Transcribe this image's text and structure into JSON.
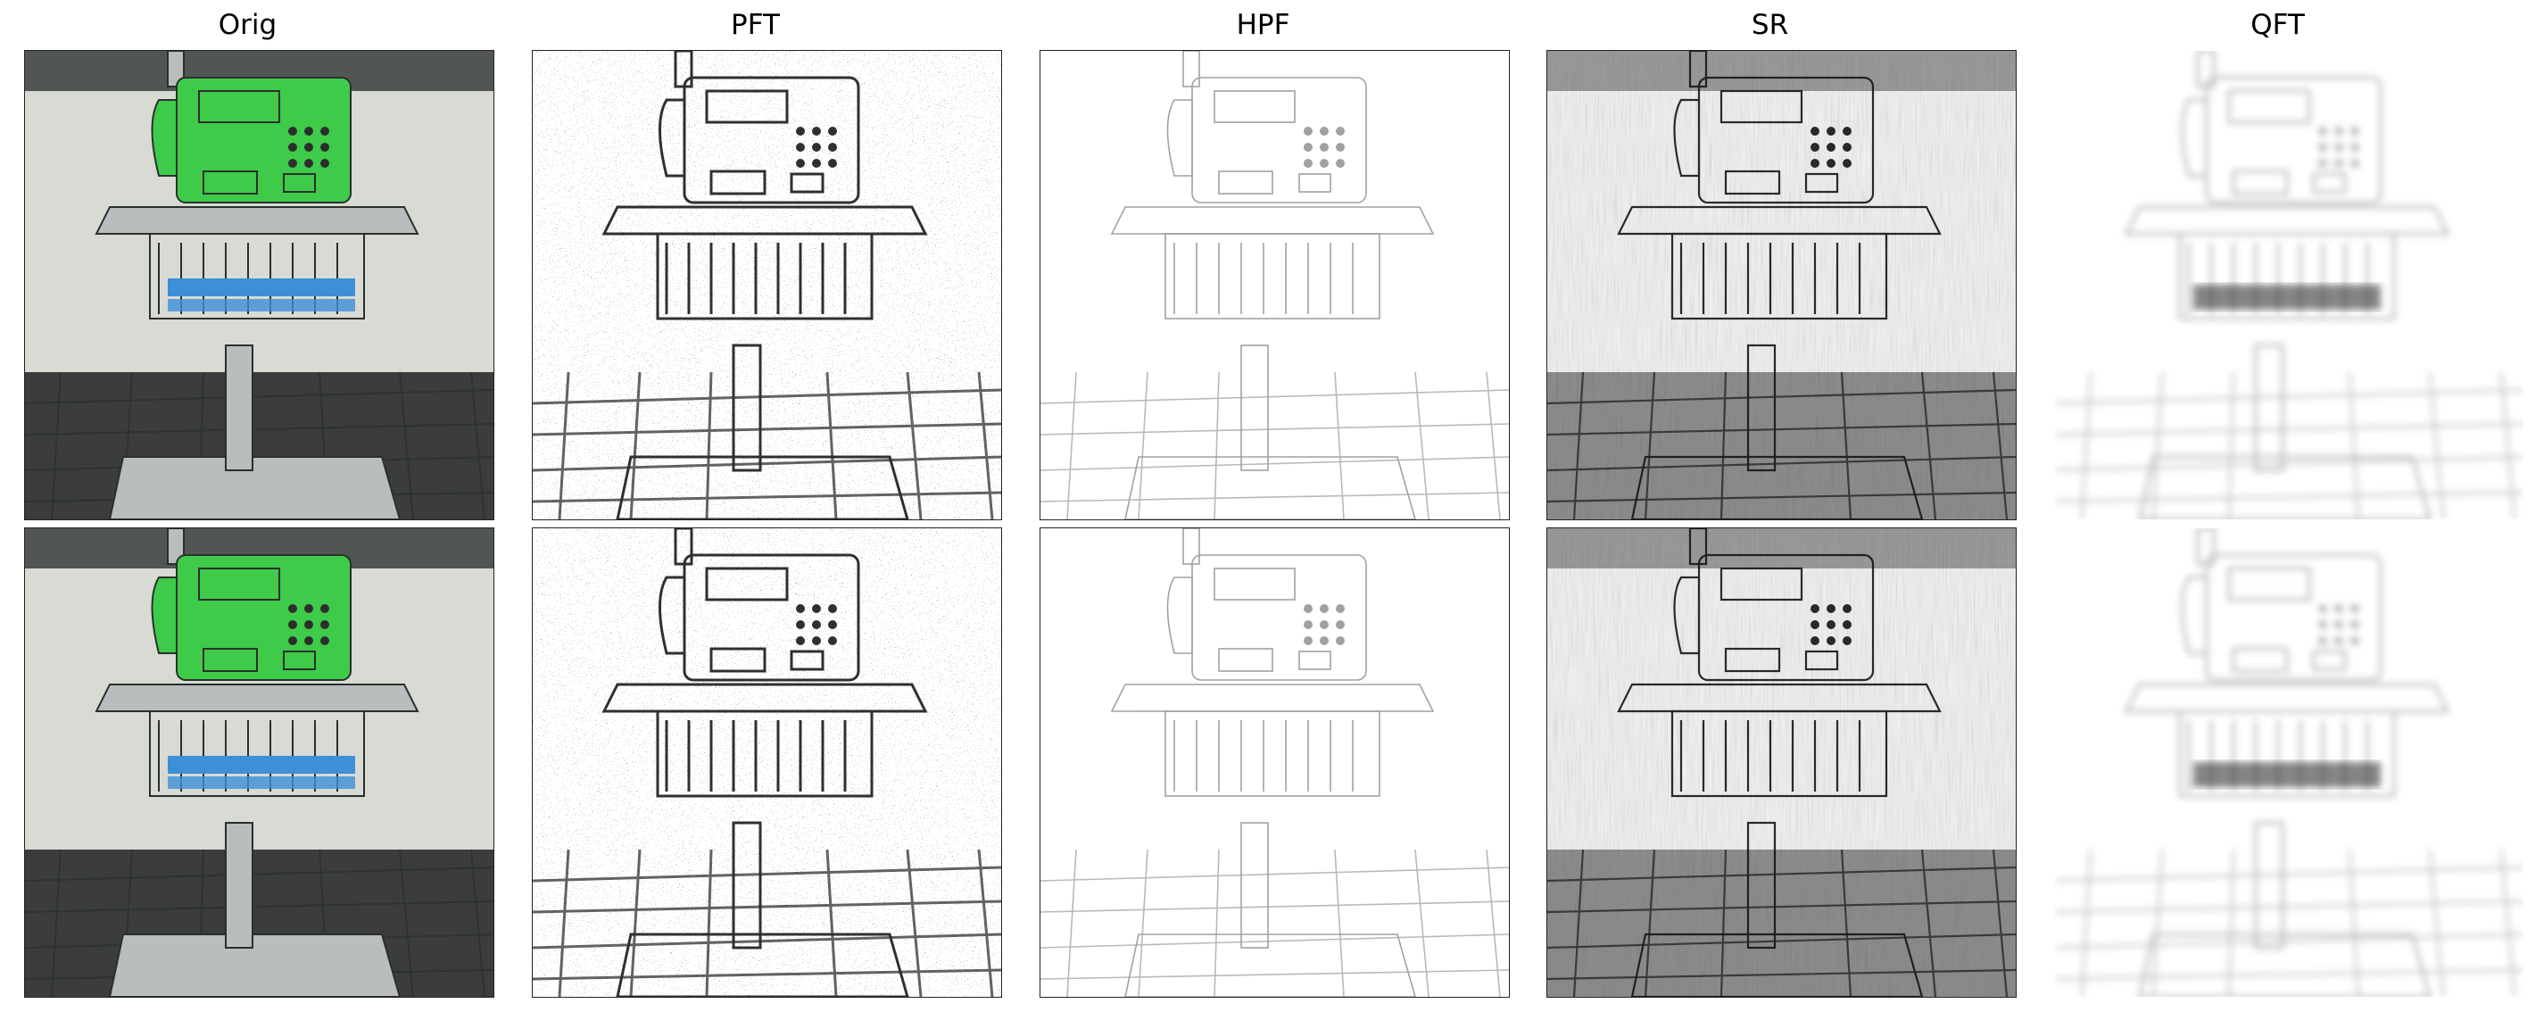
{
  "figure": {
    "columns": [
      {
        "key": "orig",
        "title": "Orig"
      },
      {
        "key": "pft",
        "title": "PFT"
      },
      {
        "key": "hpf",
        "title": "HPF"
      },
      {
        "key": "sr",
        "title": "SR"
      },
      {
        "key": "qft",
        "title": "QFT"
      }
    ],
    "rows": 2,
    "subject": "green public payphone on a metal stand with a wire shelf of phone books",
    "palette": {
      "phone_green": "#3ecb4a",
      "wall": "#d8dad4",
      "floor_dark": "#3a3d3c",
      "map_ink": "#1a1a1a",
      "map_paper": "#ffffff"
    }
  }
}
